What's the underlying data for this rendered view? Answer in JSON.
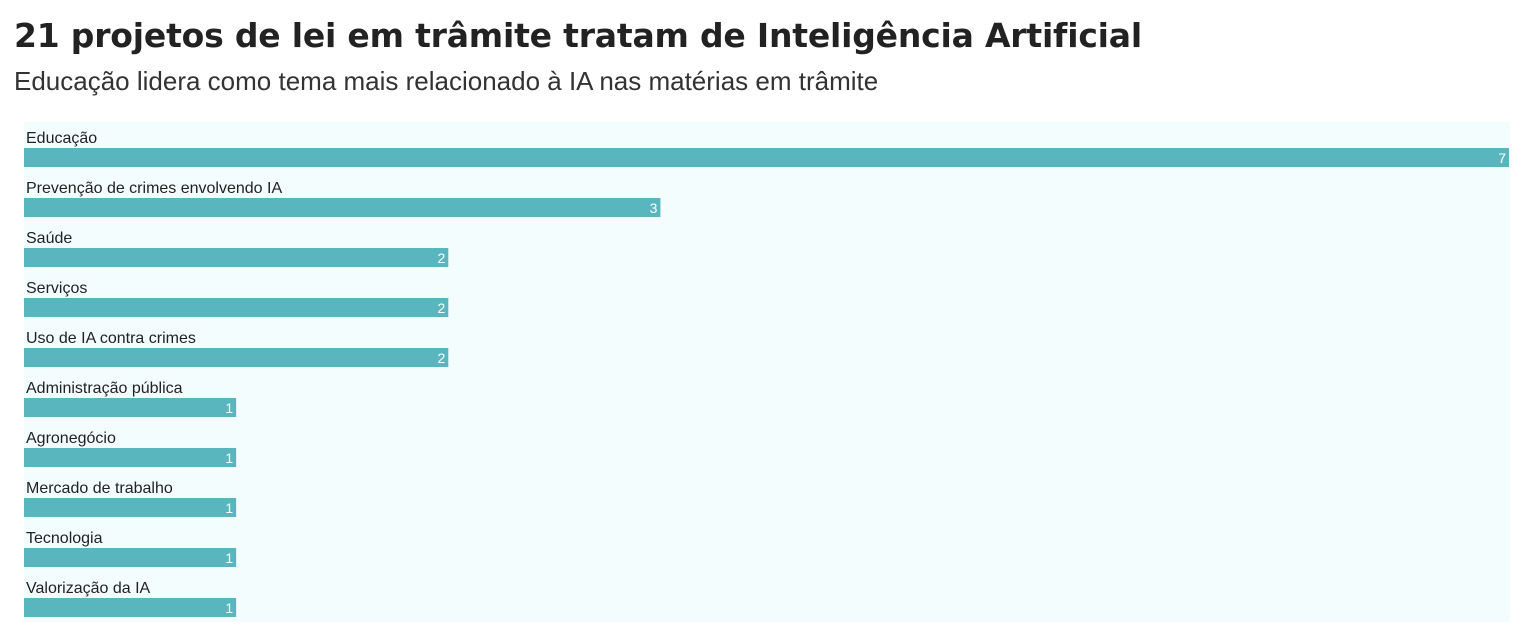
{
  "header": {
    "title": "21 projetos de lei em trâmite tratam de Inteligência Artificial",
    "subtitle": "Educação lidera como tema mais relacionado à IA nas matérias em trâmite"
  },
  "colors": {
    "bar": "#5ab6be",
    "background": "#f3fdfd",
    "value_label": "#ffffff"
  },
  "chart_data": {
    "type": "bar",
    "orientation": "horizontal",
    "title": "21 projetos de lei em trâmite tratam de Inteligência Artificial",
    "subtitle": "Educação lidera como tema mais relacionado à IA nas matérias em trâmite",
    "categories": [
      "Educação",
      "Prevenção de crimes envolvendo IA",
      "Saúde",
      "Serviços",
      "Uso de IA contra crimes",
      "Administração pública",
      "Agronegócio",
      "Mercado de trabalho",
      "Tecnologia",
      "Valorização da IA"
    ],
    "values": [
      7,
      3,
      2,
      2,
      2,
      1,
      1,
      1,
      1,
      1
    ],
    "xlim": [
      0,
      7
    ],
    "grid": false,
    "legend": "none",
    "data_labels": "inside-end"
  }
}
